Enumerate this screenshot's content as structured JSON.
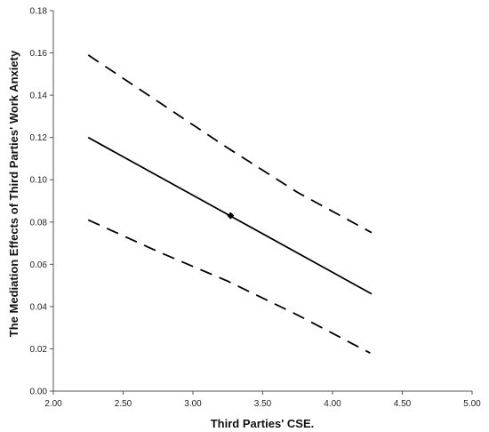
{
  "chart_data": {
    "type": "line",
    "title": "",
    "xlabel": "Third Parties' CSE.",
    "ylabel": "The Mediation Effects of Third Parties' Work Anxiety",
    "xlim": [
      2.0,
      5.0
    ],
    "ylim": [
      0.0,
      0.18
    ],
    "x_ticks": [
      2.0,
      2.5,
      3.0,
      3.5,
      4.0,
      4.5,
      5.0
    ],
    "x_tick_labels": [
      "2.00",
      "2.50",
      "3.00",
      "3.50",
      "4.00",
      "4.50",
      "5.00"
    ],
    "y_ticks": [
      0.0,
      0.02,
      0.04,
      0.06,
      0.08,
      0.1,
      0.12,
      0.14,
      0.16,
      0.18
    ],
    "y_tick_labels": [
      "0.00",
      "0.02",
      "0.04",
      "0.06",
      "0.08",
      "0.10",
      "0.12",
      "0.14",
      "0.16",
      "0.18"
    ],
    "grid": false,
    "legend": "none",
    "series": [
      {
        "style": "solid",
        "color": "#000000",
        "x": [
          2.25,
          4.28
        ],
        "y": [
          0.12,
          0.046
        ]
      },
      {
        "style": "dashed",
        "color": "#000000",
        "x": [
          2.25,
          2.75,
          3.25,
          3.75,
          4.28
        ],
        "y": [
          0.159,
          0.137,
          0.115,
          0.094,
          0.075
        ]
      },
      {
        "style": "dashed",
        "color": "#000000",
        "x": [
          2.25,
          2.75,
          3.25,
          3.75,
          4.27
        ],
        "y": [
          0.081,
          0.066,
          0.052,
          0.036,
          0.018
        ]
      }
    ],
    "marker": {
      "x": 3.27,
      "y": 0.083,
      "shape": "diamond",
      "color": "#000000"
    }
  }
}
